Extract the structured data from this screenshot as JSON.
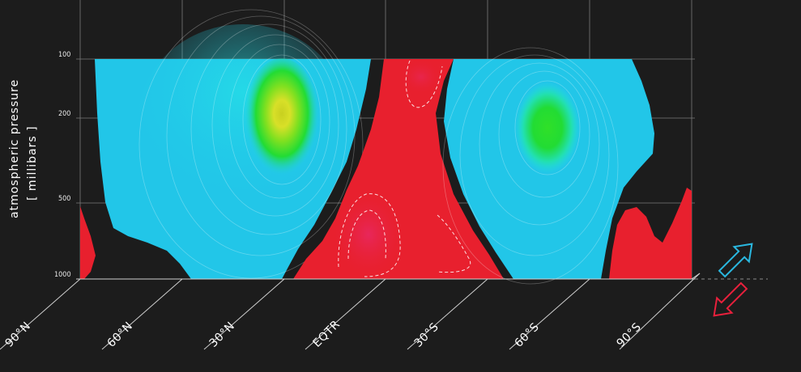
{
  "y_axis": {
    "label_line1": "atmospheric pressure",
    "label_line2": "[ millibars ]",
    "ticks": [
      "100",
      "200",
      "500",
      "1000"
    ]
  },
  "x_axis": {
    "labels": [
      "90°N",
      "60°N",
      "30°N",
      "EQTR",
      "30°S",
      "60°S",
      "90°S"
    ]
  },
  "legend": {
    "up_arrow": "cyan-outline-arrow",
    "down_arrow": "red-outline-arrow"
  },
  "colors": {
    "background": "#1c1c1c",
    "cyan_fill": "#22c6e8",
    "red_fill": "#e8202e",
    "pink_core": "#e8245a",
    "green_core": "#22e030",
    "yellow_core": "#d8e020",
    "up_arrow": "#2ab8e0",
    "down_arrow": "#e8203c"
  }
}
